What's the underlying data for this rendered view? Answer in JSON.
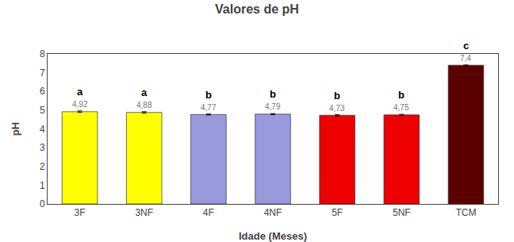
{
  "chart_data": {
    "type": "bar",
    "title": "Valores de pH",
    "xlabel": "Idade (Meses)",
    "ylabel": "pH",
    "categories": [
      "3F",
      "3NF",
      "4F",
      "4NF",
      "5F",
      "5NF",
      "TCM"
    ],
    "values": [
      4.92,
      4.88,
      4.77,
      4.79,
      4.73,
      4.75,
      7.4
    ],
    "value_labels": [
      "4,92",
      "4,88",
      "4,77",
      "4,79",
      "4,73",
      "4,75",
      "7,4"
    ],
    "errors": [
      0.04,
      0.04,
      0.03,
      0.03,
      0.03,
      0.03,
      0.0
    ],
    "colors": [
      "#FFFF00",
      "#FFFF00",
      "#9999DD",
      "#9999DD",
      "#EE0000",
      "#EE0000",
      "#5A0000"
    ],
    "data_labels": true,
    "annotations": [
      {
        "x": "3F",
        "text": "a"
      },
      {
        "x": "3NF",
        "text": "a"
      },
      {
        "x": "4F",
        "text": "b"
      },
      {
        "x": "4NF",
        "text": "b"
      },
      {
        "x": "5F",
        "text": "b"
      },
      {
        "x": "5NF",
        "text": "b"
      },
      {
        "x": "TCM",
        "text": "c"
      }
    ],
    "ylim": [
      0,
      8
    ],
    "yticks": [
      0,
      1,
      2,
      3,
      4,
      5,
      6,
      7,
      8
    ],
    "grid": false
  }
}
